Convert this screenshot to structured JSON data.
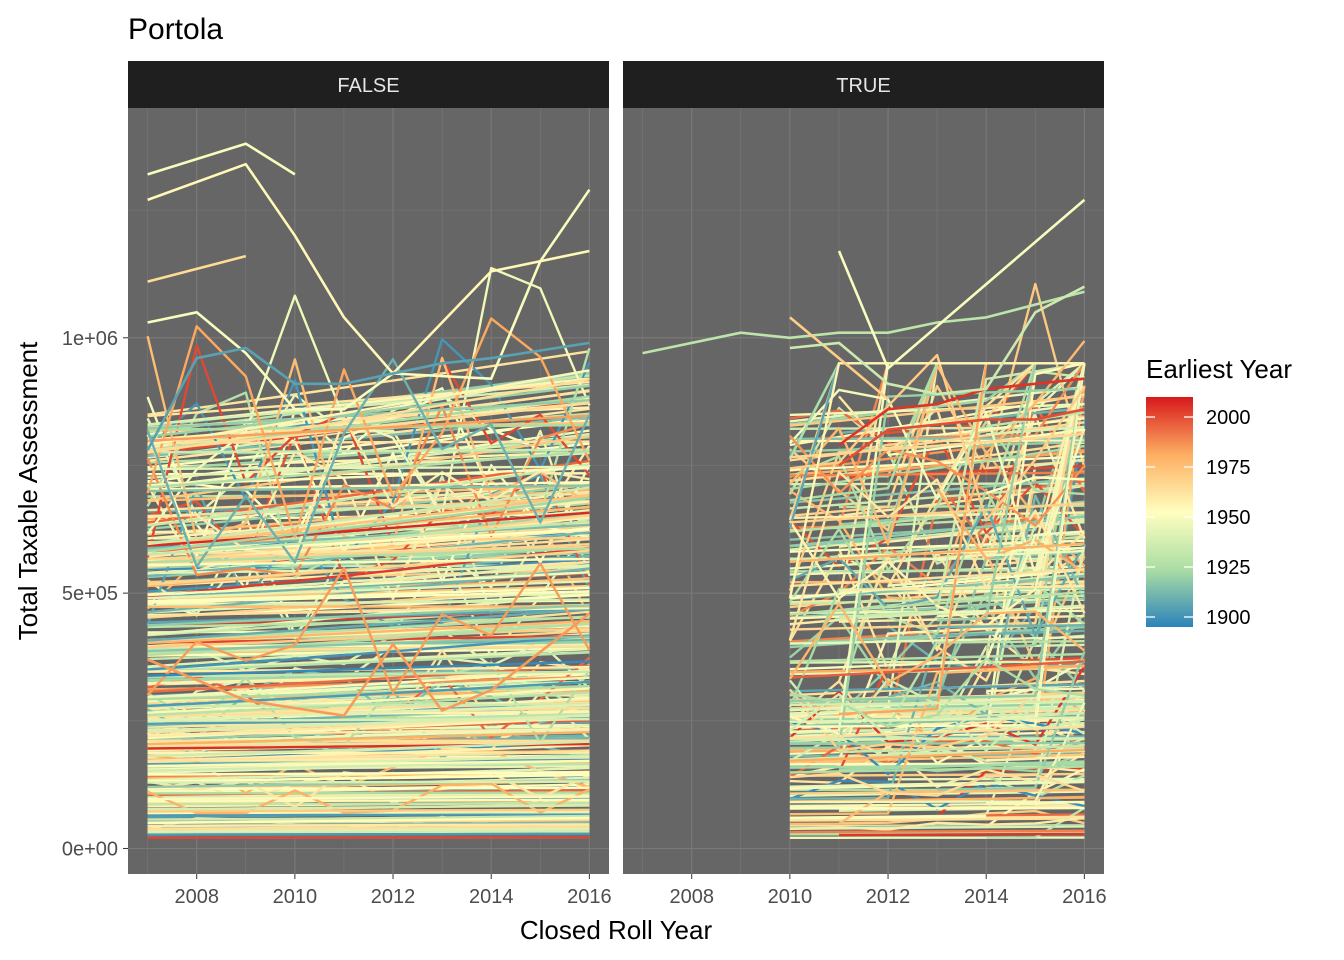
{
  "title": "Portola",
  "chart_data": {
    "type": "line",
    "title": "Portola",
    "xlabel": "Closed Roll Year",
    "ylabel": "Total Taxable Assessment",
    "xlim": [
      2006.6,
      2016.4
    ],
    "ylim": [
      -50000,
      1450000
    ],
    "x_ticks": [
      2008,
      2010,
      2012,
      2014,
      2016
    ],
    "x_tick_labels": [
      "2008",
      "2010",
      "2012",
      "2014",
      "2016"
    ],
    "y_ticks": [
      0,
      500000,
      1000000
    ],
    "y_tick_labels": [
      "0e+00",
      "5e+05",
      "1e+06"
    ],
    "grid": true,
    "panels": [
      "FALSE",
      "TRUE"
    ],
    "legend": {
      "title": "Earliest Year",
      "position": "right",
      "range": [
        1895,
        2010
      ],
      "breaks": [
        2000,
        1975,
        1950,
        1925,
        1900
      ],
      "break_labels": [
        "2000",
        "1975",
        "1950",
        "1925",
        "1900"
      ],
      "palette": [
        "#2B83BA",
        "#ABDDA4",
        "#FFFFBF",
        "#FDAE61",
        "#D7191C"
      ]
    },
    "series_representative": [
      {
        "panel": "FALSE",
        "earliest": 1950,
        "x": [
          2007,
          2009,
          2010
        ],
        "y": [
          1320000,
          1380000,
          1320000
        ]
      },
      {
        "panel": "FALSE",
        "earliest": 1955,
        "x": [
          2007,
          2009,
          2010,
          2011,
          2012,
          2014,
          2016
        ],
        "y": [
          1270000,
          1340000,
          1200000,
          1040000,
          930000,
          1130000,
          1170000
        ]
      },
      {
        "panel": "FALSE",
        "earliest": 1965,
        "x": [
          2007,
          2009
        ],
        "y": [
          1110000,
          1160000
        ]
      },
      {
        "panel": "FALSE",
        "earliest": 1950,
        "x": [
          2007,
          2008,
          2009,
          2010,
          2011,
          2012,
          2014,
          2015,
          2016
        ],
        "y": [
          1030000,
          1050000,
          970000,
          860000,
          860000,
          930000,
          920000,
          1150000,
          1290000
        ]
      },
      {
        "panel": "FALSE",
        "earliest": 1905,
        "x": [
          2007,
          2008,
          2009,
          2010,
          2011,
          2012,
          2013,
          2014,
          2016
        ],
        "y": [
          780000,
          960000,
          980000,
          910000,
          910000,
          930000,
          950000,
          960000,
          990000
        ]
      },
      {
        "panel": "FALSE",
        "earliest": 1985,
        "x": [
          2007,
          2009,
          2011,
          2012,
          2013,
          2014,
          2016
        ],
        "y": [
          370000,
          290000,
          260000,
          400000,
          270000,
          310000,
          460000
        ]
      },
      {
        "panel": "TRUE",
        "earliest": 1930,
        "x": [
          2007,
          2009,
          2010,
          2011,
          2012,
          2013,
          2014,
          2016
        ],
        "y": [
          970000,
          1010000,
          1000000,
          1010000,
          1010000,
          1030000,
          1040000,
          1090000
        ]
      },
      {
        "panel": "TRUE",
        "earliest": 2005,
        "x": [
          2011,
          2012,
          2013,
          2014,
          2016
        ],
        "y": [
          790000,
          860000,
          870000,
          900000,
          920000
        ]
      },
      {
        "panel": "TRUE",
        "earliest": 1950,
        "x": [
          2011,
          2012,
          2016
        ],
        "y": [
          1170000,
          940000,
          1270000
        ]
      },
      {
        "panel": "TRUE",
        "earliest": 1970,
        "x": [
          2010,
          2011,
          2012
        ],
        "y": [
          1040000,
          960000,
          880000
        ]
      },
      {
        "panel": "TRUE",
        "earliest": 1935,
        "x": [
          2010,
          2011,
          2012,
          2013,
          2014,
          2015,
          2016
        ],
        "y": [
          980000,
          990000,
          910000,
          890000,
          900000,
          1050000,
          1100000
        ]
      },
      {
        "panel": "TRUE",
        "earliest": 2000,
        "x": [
          2011,
          2012,
          2014,
          2015,
          2016
        ],
        "y": [
          750000,
          820000,
          840000,
          840000,
          860000
        ]
      }
    ]
  }
}
